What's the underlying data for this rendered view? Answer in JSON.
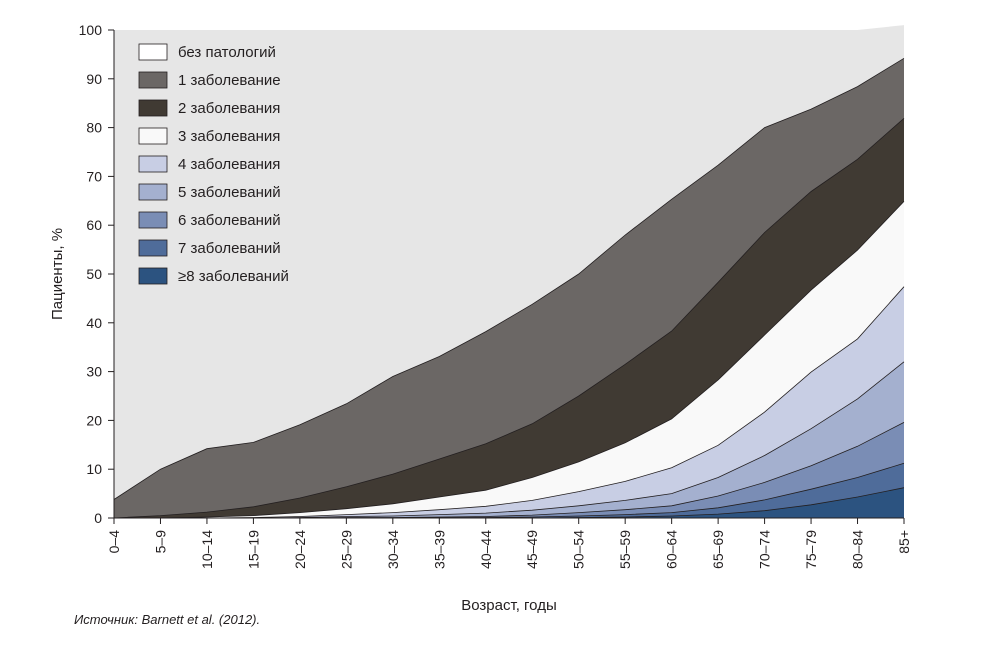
{
  "chart_data": {
    "type": "area",
    "stacked": true,
    "xlabel": "Возраст, годы",
    "ylabel": "Пациенты, %",
    "ylim": [
      0,
      100
    ],
    "yticks": [
      0,
      10,
      20,
      30,
      40,
      50,
      60,
      70,
      80,
      90,
      100
    ],
    "categories": [
      "0–4",
      "5–9",
      "10–14",
      "15–19",
      "20–24",
      "25–29",
      "30–34",
      "35–39",
      "40–44",
      "45–49",
      "50–54",
      "55–59",
      "60–64",
      "65–69",
      "70–74",
      "75–79",
      "80–84",
      "85+"
    ],
    "legend_position": "top-left",
    "background_color": "#e6e6e6",
    "series": [
      {
        "name": "≥8 заболеваний",
        "color": "#2c5380",
        "values": [
          0,
          0,
          0,
          0,
          0,
          0,
          0,
          0,
          0,
          0,
          0.1,
          0.2,
          0.4,
          0.8,
          1.5,
          2.7,
          4.3,
          6.2
        ]
      },
      {
        "name": "7 заболеваний",
        "color": "#4f6c9a",
        "values": [
          0,
          0,
          0,
          0,
          0,
          0,
          0,
          0.1,
          0.1,
          0.2,
          0.3,
          0.5,
          0.7,
          1.3,
          2.2,
          3.2,
          4.0,
          5.0
        ]
      },
      {
        "name": "6 заболеваний",
        "color": "#7a8db5",
        "values": [
          0,
          0,
          0,
          0,
          0,
          0.1,
          0.1,
          0.1,
          0.2,
          0.4,
          0.7,
          1.0,
          1.4,
          2.4,
          3.6,
          4.8,
          6.4,
          8.4
        ]
      },
      {
        "name": "5 заболеваний",
        "color": "#a4b0cf",
        "values": [
          0,
          0,
          0,
          0,
          0.1,
          0.2,
          0.3,
          0.5,
          0.7,
          1.0,
          1.4,
          1.9,
          2.5,
          3.8,
          5.5,
          7.6,
          9.7,
          12.4
        ]
      },
      {
        "name": "4 заболевания",
        "color": "#c8cee4",
        "values": [
          0,
          0,
          0,
          0.1,
          0.2,
          0.4,
          0.7,
          1.0,
          1.4,
          2.0,
          2.9,
          3.9,
          5.3,
          6.6,
          8.9,
          11.6,
          12.3,
          15.4
        ]
      },
      {
        "name": "3 заболевания",
        "color": "#f9f9f9",
        "values": [
          0,
          0,
          0.2,
          0.4,
          0.8,
          1.2,
          1.8,
          2.6,
          3.3,
          4.7,
          6.1,
          7.9,
          10.0,
          13.4,
          15.8,
          16.8,
          18.2,
          17.5
        ]
      },
      {
        "name": "2 заболевания",
        "color": "#403a33",
        "values": [
          0,
          0.5,
          1.0,
          1.8,
          3.0,
          4.5,
          6.1,
          7.8,
          9.5,
          11.0,
          13.5,
          16.1,
          18.0,
          20.0,
          21.0,
          20.2,
          18.6,
          17.0
        ]
      },
      {
        "name": "1 заболевание",
        "color": "#6b6765",
        "values": [
          3.8,
          9.5,
          13.0,
          13.2,
          15.0,
          17.0,
          20.0,
          21.0,
          23.0,
          24.5,
          25.0,
          26.5,
          27.0,
          24.0,
          21.5,
          16.9,
          14.9,
          12.3
        ]
      },
      {
        "name": "без патологий",
        "color": "#e6e6e6",
        "values": [
          96.2,
          90.0,
          85.8,
          84.5,
          80.9,
          76.6,
          71.0,
          66.9,
          61.8,
          56.2,
          50.0,
          42.0,
          34.7,
          27.7,
          20.0,
          16.2,
          11.6,
          6.8
        ]
      }
    ],
    "legend_order": [
      "без патологий",
      "1 заболевание",
      "2 заболевания",
      "3 заболевания",
      "4 заболевания",
      "5 заболеваний",
      "6 заболеваний",
      "7 заболеваний",
      "≥8 заболеваний"
    ]
  },
  "source_note": "Источник: Barnett et al. (2012)."
}
